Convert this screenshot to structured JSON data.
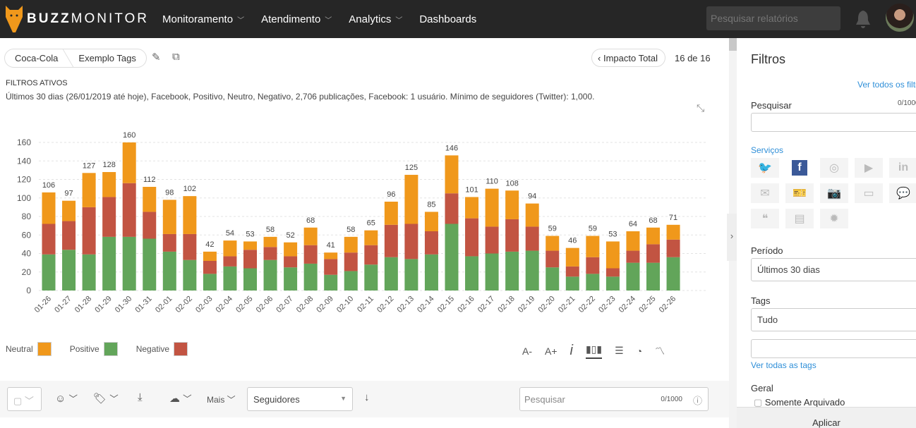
{
  "header": {
    "brand_bold": "BUZZ",
    "brand_rest": "MONITOR",
    "nav": [
      {
        "label": "Monitoramento",
        "dropdown": true
      },
      {
        "label": "Atendimento",
        "dropdown": true
      },
      {
        "label": "Analytics",
        "dropdown": true
      },
      {
        "label": "Dashboards",
        "dropdown": false
      }
    ],
    "search_placeholder": "Pesquisar relatórios"
  },
  "breadcrumb": [
    "Coca-Cola",
    "Exemplo Tags"
  ],
  "pager": {
    "back_label": "Impacto Total",
    "count": "16 de 16"
  },
  "filters": {
    "title": "FILTROS ATIVOS",
    "text": "Últimos 30 dias (26/01/2019 até hoje), Facebook, Positivo, Neutro, Negativo, 2,706 publicações, Facebook: 1 usuário. Mínimo de seguidores (Twitter): 1,000."
  },
  "chart_data": {
    "type": "bar",
    "stacked": true,
    "ylim": [
      0,
      160
    ],
    "yticks": [
      0,
      20,
      40,
      60,
      80,
      100,
      120,
      140,
      160
    ],
    "grid": true,
    "categories": [
      "01-26",
      "01-27",
      "01-28",
      "01-29",
      "01-30",
      "01-31",
      "02-01",
      "02-02",
      "02-03",
      "02-04",
      "02-05",
      "02-06",
      "02-07",
      "02-08",
      "02-09",
      "02-10",
      "02-11",
      "02-12",
      "02-13",
      "02-14",
      "02-15",
      "02-16",
      "02-17",
      "02-18",
      "02-19",
      "02-20",
      "02-21",
      "02-22",
      "02-23",
      "02-24",
      "02-25",
      "02-26"
    ],
    "totals": [
      106,
      97,
      127,
      128,
      160,
      112,
      98,
      102,
      42,
      54,
      53,
      58,
      52,
      68,
      41,
      58,
      65,
      96,
      125,
      85,
      146,
      101,
      110,
      108,
      94,
      59,
      46,
      59,
      53,
      64,
      68,
      71
    ],
    "series": [
      {
        "name": "Positive",
        "color": "#62a55a",
        "values": [
          39,
          44,
          39,
          58,
          58,
          56,
          42,
          33,
          18,
          26,
          24,
          33,
          25,
          29,
          17,
          21,
          28,
          36,
          34,
          39,
          72,
          37,
          40,
          42,
          43,
          25,
          15,
          18,
          15,
          30,
          30,
          36
        ]
      },
      {
        "name": "Negative",
        "color": "#c25442",
        "values": [
          33,
          31,
          51,
          43,
          58,
          29,
          19,
          28,
          14,
          11,
          20,
          14,
          12,
          20,
          17,
          20,
          21,
          35,
          38,
          25,
          33,
          41,
          29,
          35,
          26,
          18,
          11,
          18,
          9,
          13,
          20,
          19
        ]
      },
      {
        "name": "Neutral",
        "color": "#f0981b",
        "values": [
          34,
          22,
          37,
          27,
          44,
          27,
          37,
          41,
          10,
          17,
          9,
          11,
          15,
          19,
          7,
          17,
          16,
          25,
          53,
          21,
          41,
          23,
          41,
          31,
          25,
          16,
          20,
          23,
          29,
          21,
          18,
          16
        ]
      }
    ],
    "legend": [
      "Neutral",
      "Positive",
      "Negative"
    ],
    "legend_placement": "bottom-left"
  },
  "chart_tools": {
    "font_smaller": "A-",
    "font_larger": "A+"
  },
  "toolbar": {
    "more_label": "Mais",
    "sort_value": "Seguidores",
    "search_placeholder": "Pesquisar",
    "search_count": "0/1000"
  },
  "sidebar": {
    "title": "Filtros",
    "see_all": "Ver todos os filtros",
    "search_label": "Pesquisar",
    "search_count": "0/1000",
    "services_label": "Serviços",
    "services": [
      "twitter",
      "facebook",
      "instagram",
      "youtube",
      "linkedin",
      "email",
      "ticket",
      "camera",
      "video",
      "chat",
      "quote",
      "news",
      "other"
    ],
    "active_service": "facebook",
    "period_label": "Período",
    "period_value": "Últimos 30 dias",
    "tags_label": "Tags",
    "tags_value": "Tudo",
    "see_tags": "Ver todas as tags",
    "general_label": "Geral",
    "archived_label": "Somente Arquivado",
    "apply_label": "Aplicar"
  }
}
